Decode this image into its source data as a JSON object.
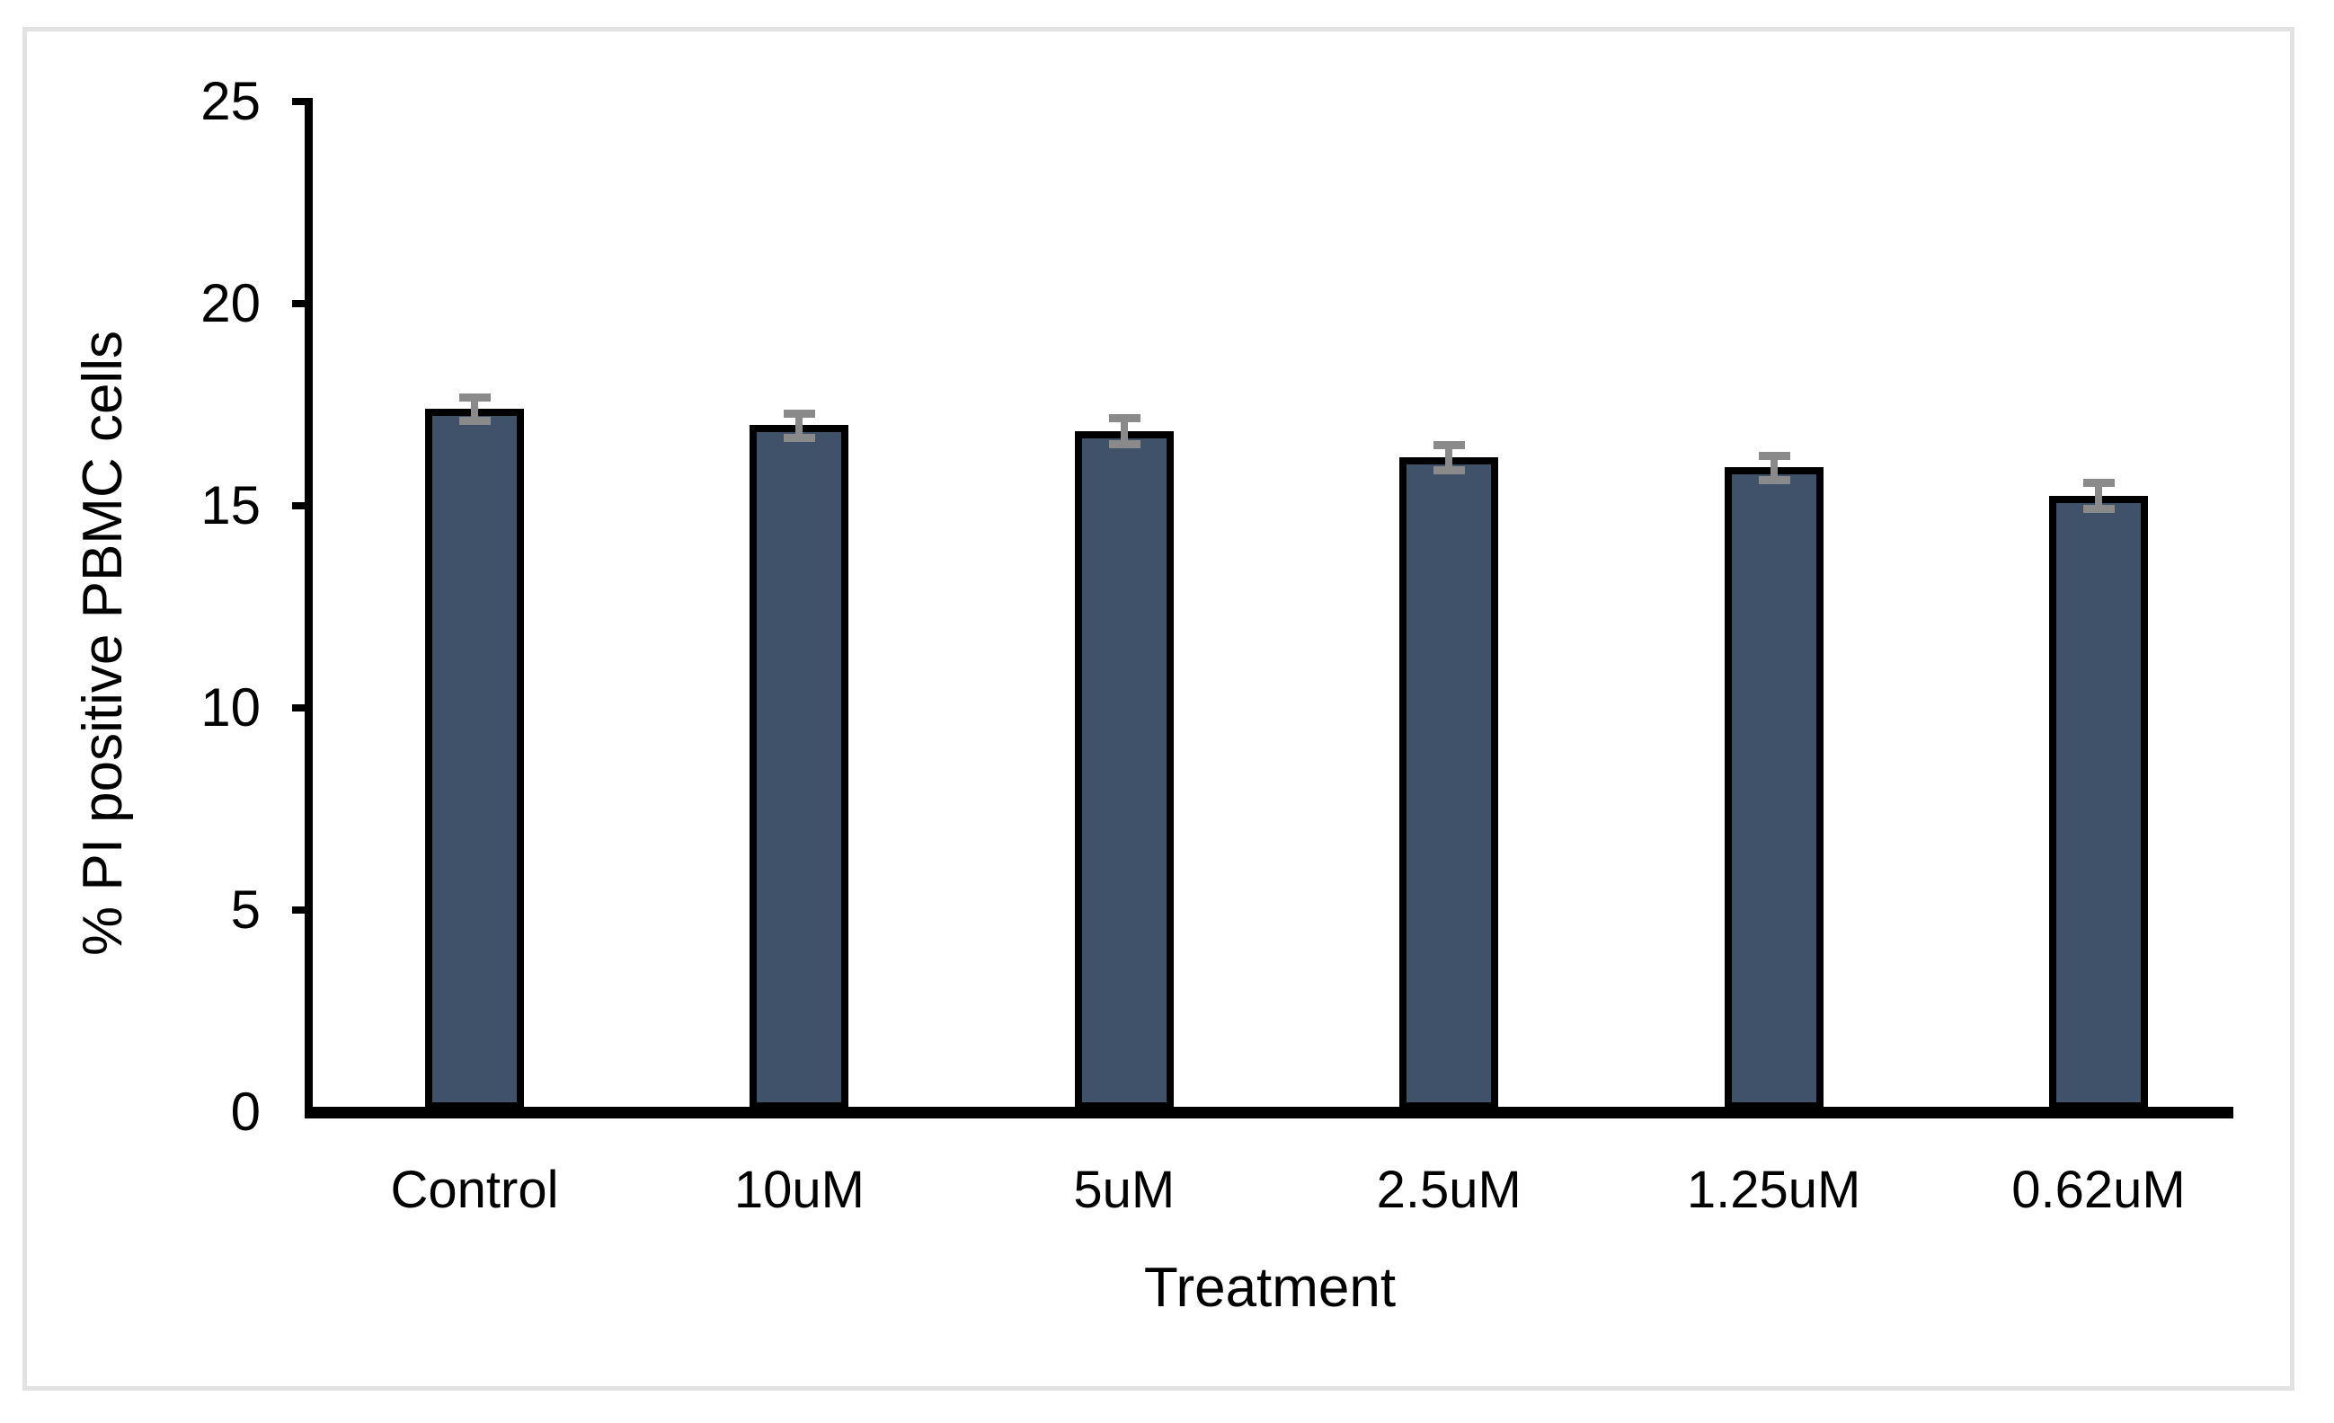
{
  "chart_data": {
    "type": "bar",
    "title": "",
    "xlabel": "Treatment",
    "ylabel": "% PI positive PBMC cells",
    "categories": [
      "Control",
      "10uM",
      "5uM",
      "2.5uM",
      "1.25uM",
      "0.62uM"
    ],
    "values": [
      17.4,
      17.0,
      16.85,
      16.2,
      15.95,
      15.25
    ],
    "error_bars": [
      0.28,
      0.3,
      0.32,
      0.32,
      0.3,
      0.32
    ],
    "yticks": [
      0,
      5,
      10,
      15,
      20,
      25
    ],
    "ylim": [
      0,
      25
    ],
    "grid": false,
    "legend": "none",
    "colors": {
      "bar_fill": "#3F5269",
      "bar_border": "#000000",
      "error_bar": "#8A8A8A",
      "axis": "#000000",
      "figure_border": "#E2E2E2",
      "background": "#FFFFFF"
    }
  }
}
